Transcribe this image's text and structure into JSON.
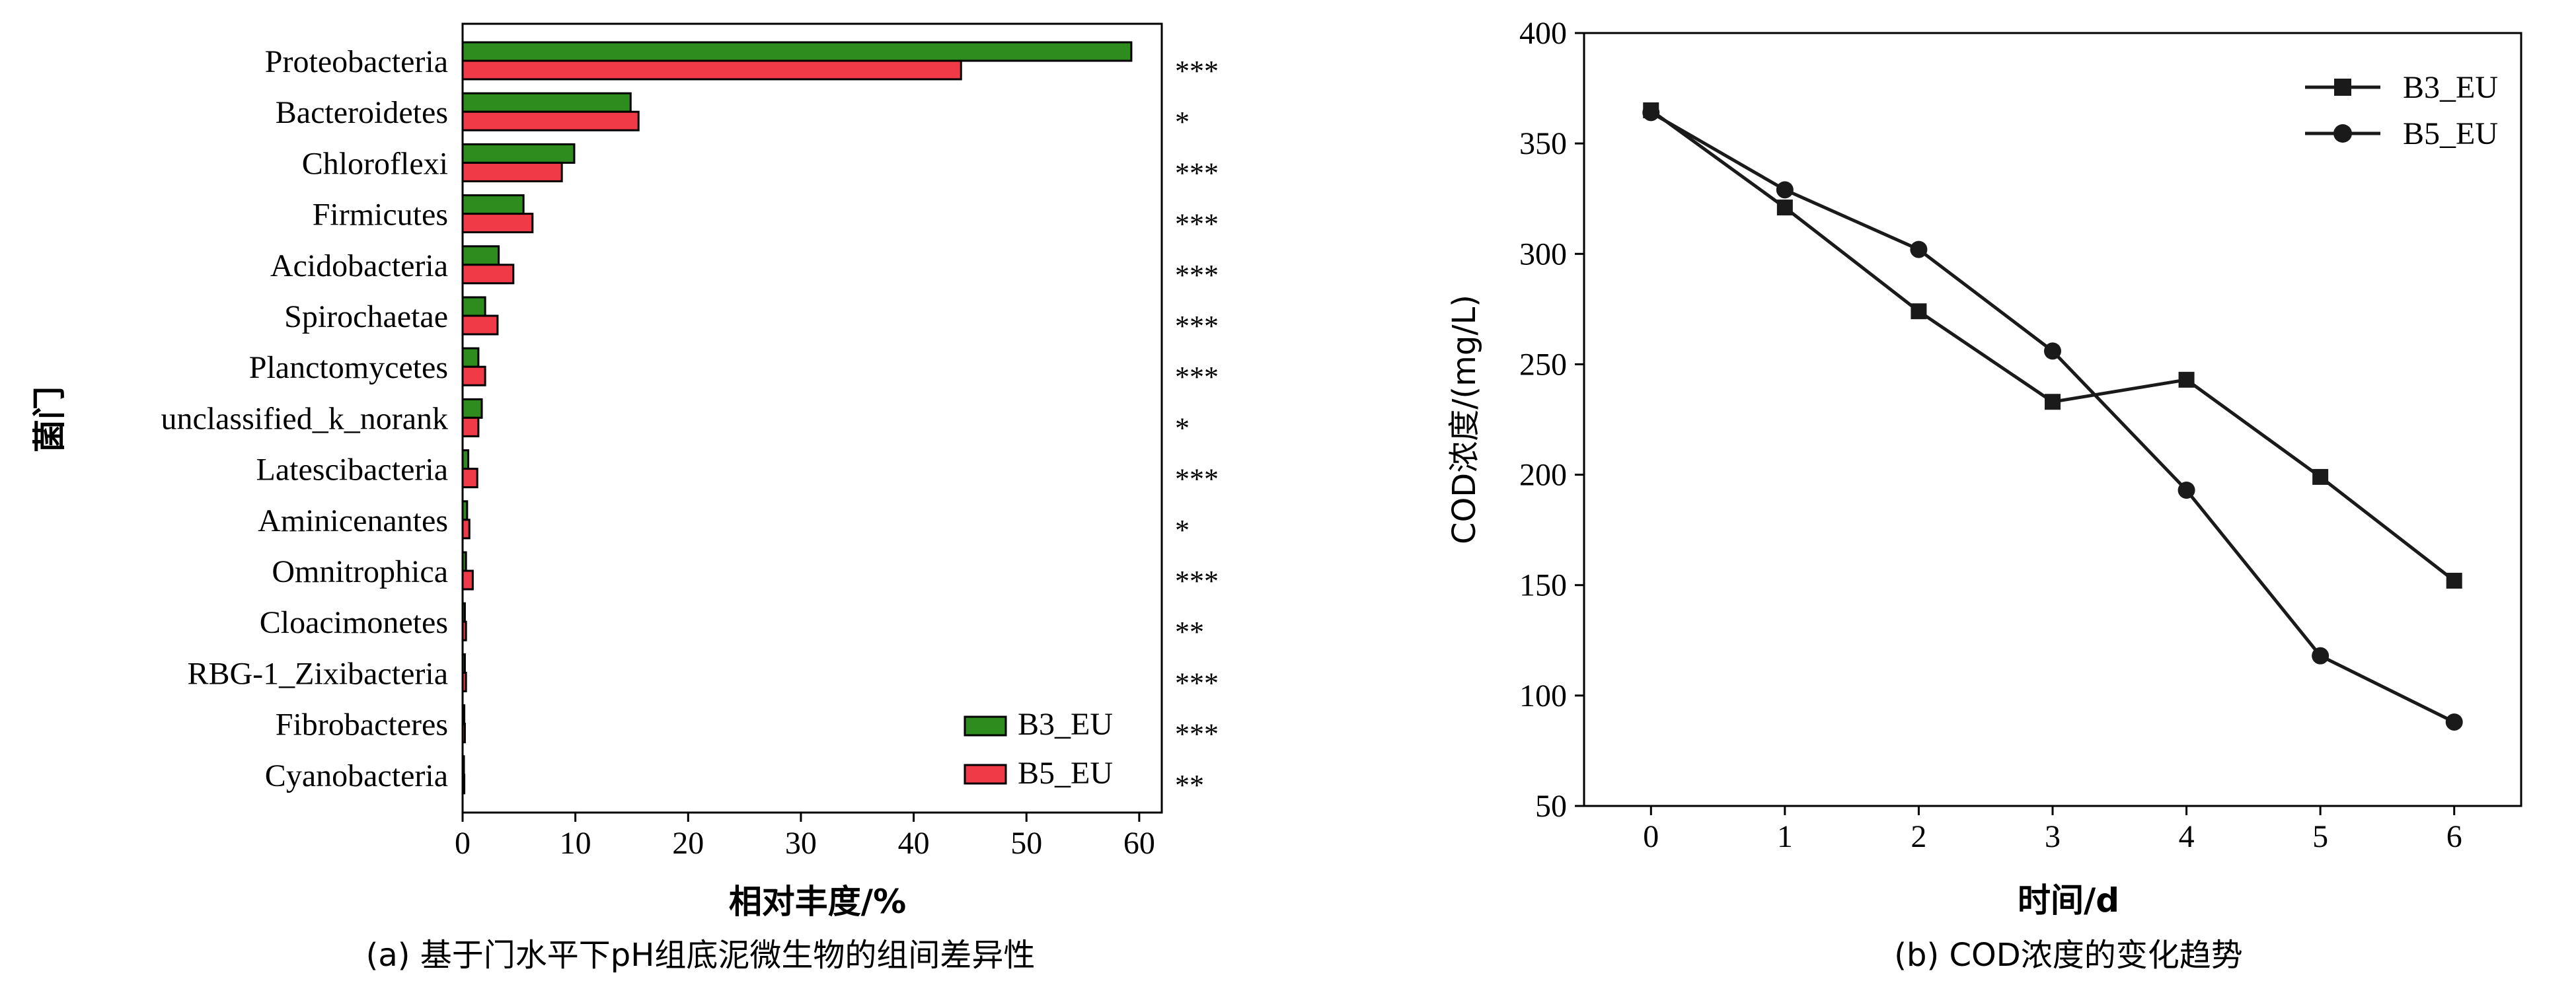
{
  "colors": {
    "b3": "#2e8b1e",
    "b5": "#f03a48",
    "line": "#1a1a1a"
  },
  "chart_data": [
    {
      "type": "bar",
      "orientation": "horizontal",
      "caption": "(a) 基于门水平下pH组底泥微生物的组间差异性",
      "xlabel": "相对丰度/%",
      "ylabel": "菌门",
      "xlim": [
        0,
        62
      ],
      "xticks": [
        0,
        10,
        20,
        30,
        40,
        50,
        60
      ],
      "legend_position": "bottom-right",
      "categories": [
        "Proteobacteria",
        "Bacteroidetes",
        "Chloroflexi",
        "Firmicutes",
        "Acidobacteria",
        "Spirochaetae",
        "Planctomycetes",
        "unclassified_k_norank",
        "Latescibacteria",
        "Aminicenantes",
        "Omnitrophica",
        "Cloacimonetes",
        "RBG-1_Zixibacteria",
        "Fibrobacteres",
        "Cyanobacteria"
      ],
      "series": [
        {
          "name": "B3_EU",
          "values": [
            59.3,
            14.9,
            9.9,
            5.4,
            3.2,
            2.0,
            1.4,
            1.7,
            0.5,
            0.4,
            0.3,
            0.2,
            0.2,
            0.15,
            0.1
          ]
        },
        {
          "name": "B5_EU",
          "values": [
            44.2,
            15.6,
            8.8,
            6.2,
            4.5,
            3.1,
            2.0,
            1.4,
            1.3,
            0.6,
            0.9,
            0.3,
            0.3,
            0.2,
            0.15
          ]
        }
      ],
      "significance": [
        "***",
        "*",
        "***",
        "***",
        "***",
        "***",
        "***",
        "*",
        "***",
        "*",
        "***",
        "**",
        "***",
        "***",
        "**"
      ]
    },
    {
      "type": "line",
      "caption": "(b) COD浓度的变化趋势",
      "xlabel": "时间/d",
      "ylabel": "COD浓度/(mg/L)",
      "x": [
        0,
        1,
        2,
        3,
        4,
        5,
        6
      ],
      "xlim": [
        -0.5,
        6.5
      ],
      "ylim": [
        50,
        400
      ],
      "yticks": [
        50,
        100,
        150,
        200,
        250,
        300,
        350,
        400
      ],
      "legend_position": "top-right",
      "series": [
        {
          "name": "B3_EU",
          "marker": "square",
          "values": [
            365,
            321,
            274,
            233,
            243,
            199,
            152
          ]
        },
        {
          "name": "B5_EU",
          "marker": "circle",
          "values": [
            364,
            329,
            302,
            256,
            193,
            118,
            88
          ]
        }
      ]
    }
  ]
}
